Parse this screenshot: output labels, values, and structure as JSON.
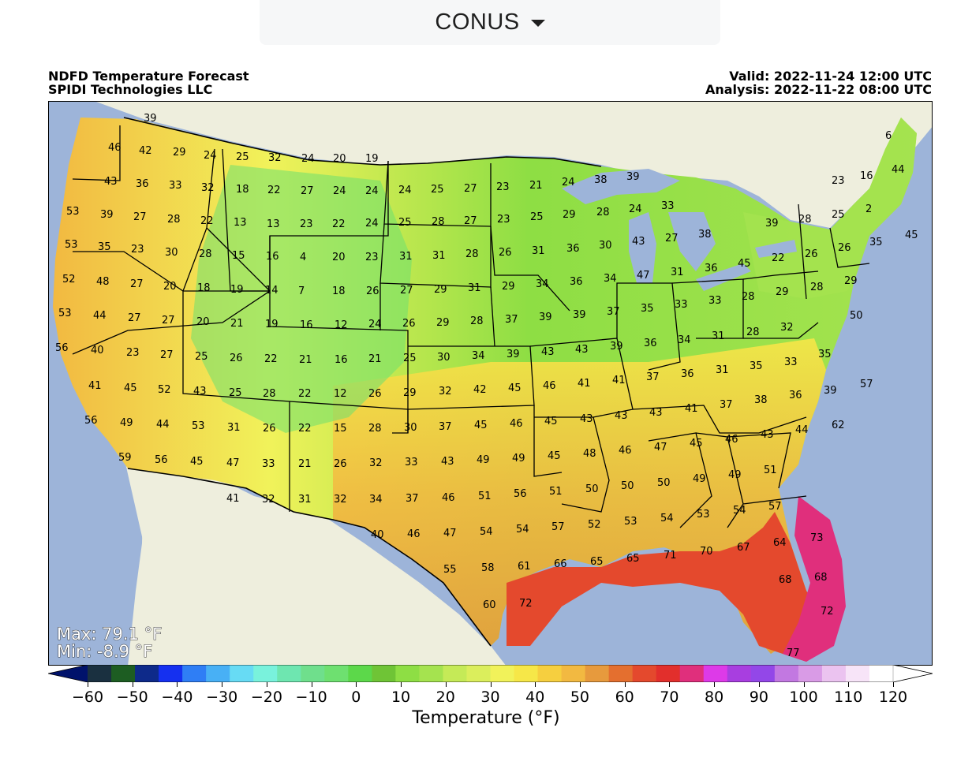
{
  "selector": {
    "label": "CONUS",
    "icon": "caret-down-icon"
  },
  "header": {
    "title": "NDFD Temperature Forecast",
    "source": "SPIDI Technologies LLC",
    "valid": "Valid: 2022-11-24 12:00 UTC",
    "analysis": "Analysis: 2022-11-22 08:00 UTC"
  },
  "stats": {
    "max": "Max: 79.1 °F",
    "min": "Min: -8.9 °F"
  },
  "colorbar": {
    "title": "Temperature (°F)",
    "ticks": [
      "−60",
      "−50",
      "−40",
      "−30",
      "−20",
      "−10",
      "0",
      "10",
      "20",
      "30",
      "40",
      "50",
      "60",
      "70",
      "80",
      "90",
      "100",
      "110",
      "120"
    ],
    "colors": [
      "#00126b",
      "#1a3040",
      "#1d5d22",
      "#0e2a8a",
      "#1530f0",
      "#2f7ef5",
      "#48b0f5",
      "#67dbf4",
      "#79f2dc",
      "#6ee6b0",
      "#6fdf8c",
      "#6ee070",
      "#5cd84a",
      "#6fc436",
      "#8ede44",
      "#a5e34f",
      "#c5ea57",
      "#dbee5c",
      "#f1f25a",
      "#f6e748",
      "#f6cf3f",
      "#f2b941",
      "#e79a3d",
      "#e46f2f",
      "#e4492d",
      "#e22f2c",
      "#e02f7c",
      "#dd3ae8",
      "#a83ee0",
      "#9347e8",
      "#c278e1",
      "#d99be6",
      "#ebc3f0",
      "#f7e4f8",
      "#ffffff"
    ],
    "min_color": "#00126b",
    "max_color": "#ffffff"
  },
  "map_colors": {
    "ocean": "#9db4d9",
    "land": "#eeeedd",
    "border": "#000000",
    "lake": "#9db4d9"
  },
  "chart_data": {
    "type": "heatmap",
    "region": "CONUS",
    "variable": "Temperature (°F)",
    "range": [
      -60,
      120
    ],
    "station_values": [
      39,
      46,
      42,
      29,
      24,
      25,
      32,
      24,
      20,
      19,
      43,
      36,
      33,
      32,
      18,
      22,
      27,
      24,
      24,
      24,
      25,
      27,
      23,
      21,
      24,
      38,
      39,
      53,
      39,
      27,
      28,
      22,
      13,
      13,
      23,
      22,
      24,
      25,
      28,
      27,
      23,
      25,
      29,
      28,
      24,
      33,
      16,
      23,
      53,
      35,
      23,
      30,
      28,
      15,
      16,
      4,
      20,
      23,
      31,
      31,
      28,
      26,
      31,
      36,
      30,
      43,
      27,
      38,
      39,
      28,
      25,
      24,
      45,
      52,
      48,
      27,
      20,
      18,
      19,
      14,
      7,
      18,
      26,
      27,
      29,
      31,
      29,
      34,
      36,
      34,
      47,
      31,
      36,
      45,
      22,
      26,
      26,
      53,
      44,
      27,
      27,
      20,
      21,
      19,
      16,
      12,
      24,
      26,
      29,
      28,
      37,
      39,
      39,
      37,
      35,
      33,
      33,
      28,
      29,
      28,
      29,
      50,
      56,
      40,
      23,
      27,
      25,
      26,
      22,
      21,
      16,
      21,
      25,
      30,
      34,
      39,
      43,
      43,
      39,
      36,
      34,
      31,
      28,
      32,
      41,
      45,
      52,
      43,
      25,
      28,
      22,
      12,
      26,
      29,
      32,
      42,
      45,
      46,
      41,
      41,
      37,
      36,
      31,
      35,
      33,
      35,
      57,
      56,
      49,
      44,
      53,
      31,
      26,
      22,
      15,
      28,
      30,
      37,
      45,
      46,
      45,
      43,
      43,
      43,
      41,
      37,
      38,
      36,
      39,
      62,
      59,
      56,
      45,
      47,
      33,
      21,
      26,
      32,
      33,
      43,
      49,
      49,
      45,
      48,
      46,
      47,
      45,
      46,
      43,
      44,
      41,
      32,
      31,
      32,
      34,
      37,
      46,
      51,
      56,
      51,
      50,
      50,
      50,
      49,
      49,
      51,
      40,
      46,
      47,
      54,
      54,
      57,
      52,
      53,
      54,
      53,
      54,
      57,
      55,
      58,
      61,
      66,
      65,
      65,
      71,
      70,
      67,
      64,
      73,
      68,
      68,
      60,
      72,
      72,
      77
    ],
    "max": 79.1,
    "min": -8.9
  }
}
